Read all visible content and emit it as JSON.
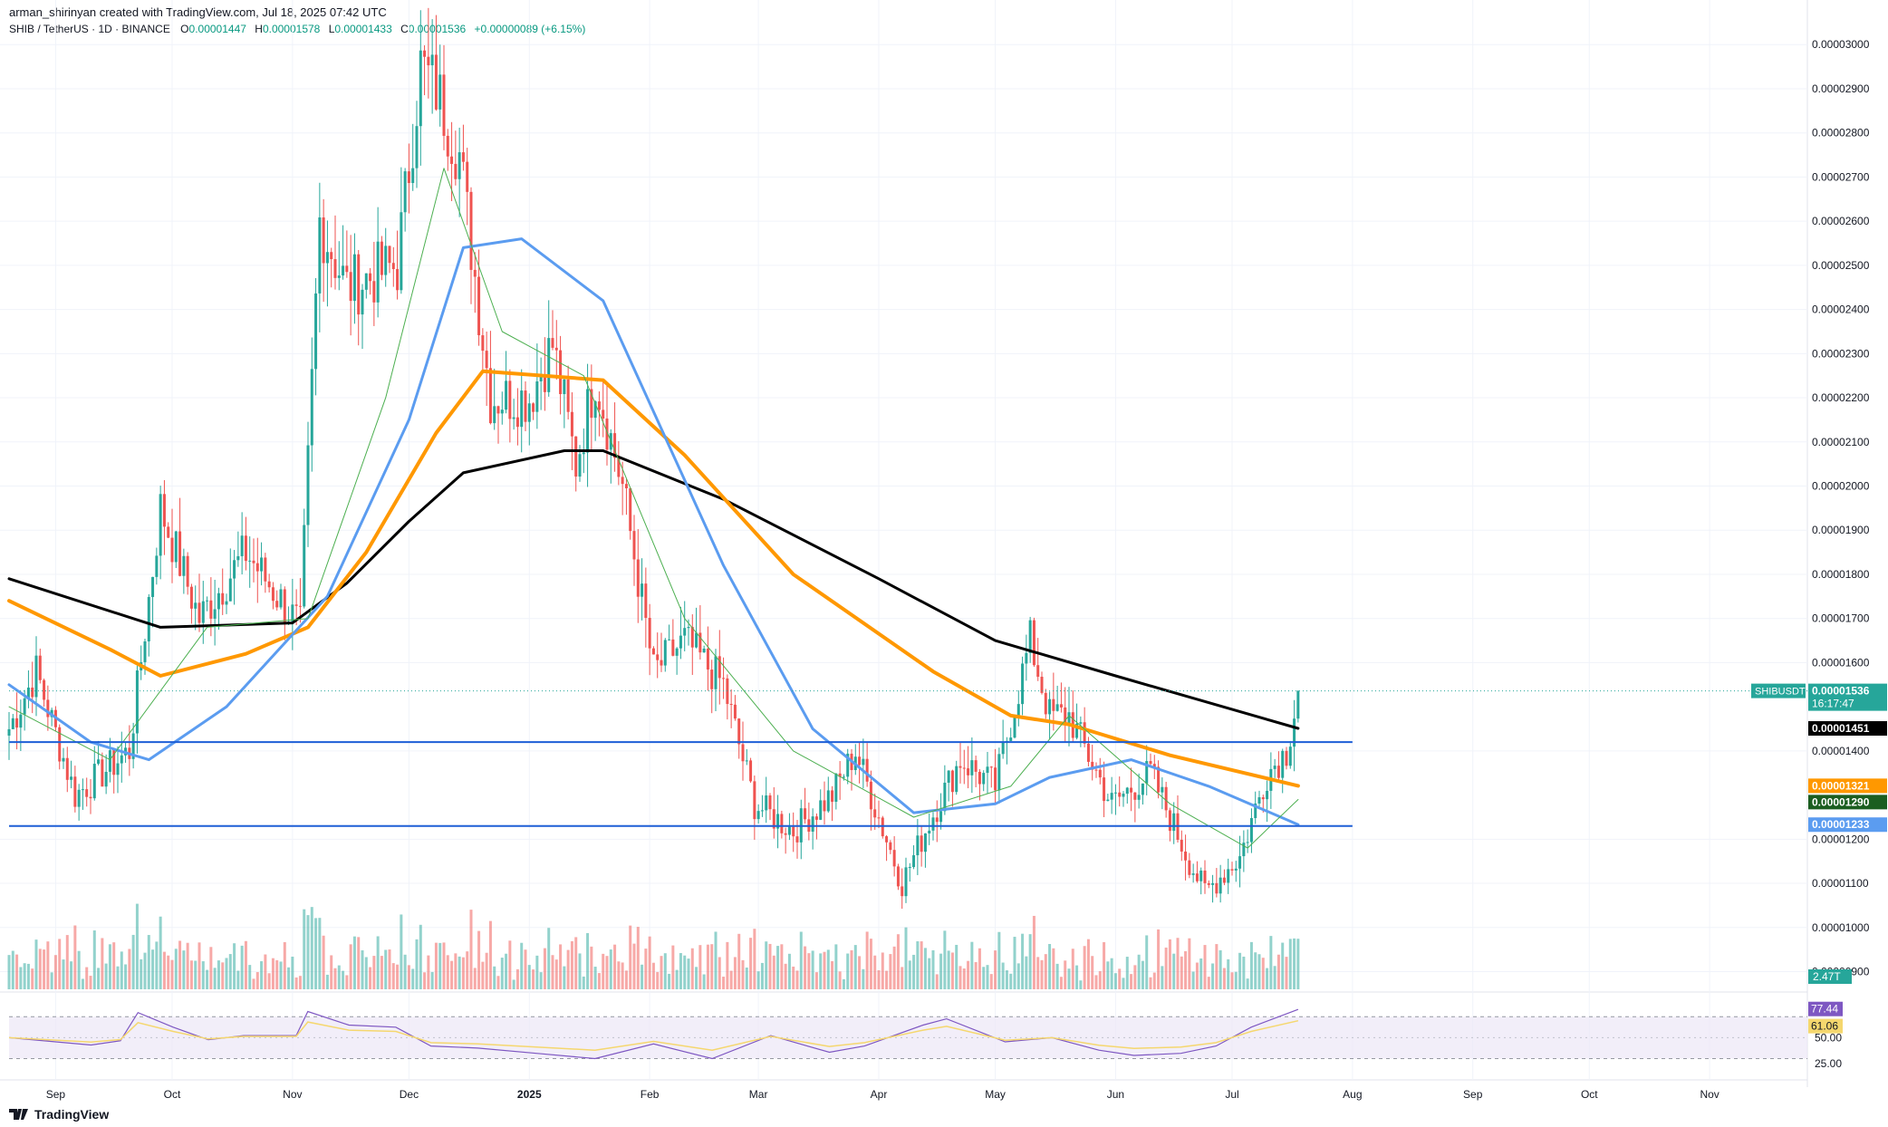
{
  "header": {
    "published_line": "arman_shirinyan created with TradingView.com, Jul 18, 2025 07:42 UTC",
    "symbol_line": "SHIB / TetherUS · 1D · BINANCE",
    "o_label": "O",
    "o_value": "0.00001447",
    "h_label": "H",
    "h_value": "0.00001578",
    "l_label": "L",
    "l_value": "0.00001433",
    "c_label": "C",
    "c_value": "0.00001536",
    "change": "+0.00000089 (+6.15%)"
  },
  "footer": {
    "brand": "TradingView"
  },
  "colors": {
    "up": "#26a69a",
    "down": "#ef5350",
    "ma_black": "#000000",
    "ma_orange": "#ff9800",
    "ma_blue": "#5b9cf0",
    "ma_green": "#4caf50",
    "hline": "#1e5fd6",
    "rsi": "#7e57c2",
    "rsi_ma": "#f5d76e"
  },
  "chart_data": [
    {
      "type": "candlestick",
      "title": "SHIB / TetherUS · 1D · BINANCE",
      "x_axis_labels": [
        "Sep",
        "Oct",
        "Nov",
        "Dec",
        "2025",
        "Feb",
        "Mar",
        "Apr",
        "May",
        "Jun",
        "Jul",
        "Aug",
        "Sep",
        "Oct",
        "Nov"
      ],
      "x_range": [
        "2024-08-20",
        "2025-11-25"
      ],
      "y_ticks": [
        "0.00000900",
        "0.00001000",
        "0.00001100",
        "0.00001200",
        "0.00001400",
        "0.00001600",
        "0.00001700",
        "0.00001800",
        "0.00001900",
        "0.00002000",
        "0.00002100",
        "0.00002200",
        "0.00002300",
        "0.00002400",
        "0.00002500",
        "0.00002600",
        "0.00002700",
        "0.00002800",
        "0.00002900",
        "0.00003000"
      ],
      "ylim": [
        8.6e-06,
        3.06e-05
      ],
      "key_points": [
        {
          "date": "2024-08-20",
          "close": 1.45e-05
        },
        {
          "date": "2024-08-27",
          "close": 1.58e-05
        },
        {
          "date": "2024-09-06",
          "close": 1.3e-05
        },
        {
          "date": "2024-09-20",
          "close": 1.4e-05
        },
        {
          "date": "2024-09-28",
          "close": 1.95e-05
        },
        {
          "date": "2024-10-08",
          "close": 1.7e-05
        },
        {
          "date": "2024-10-20",
          "close": 1.85e-05
        },
        {
          "date": "2024-11-03",
          "close": 1.68e-05
        },
        {
          "date": "2024-11-08",
          "close": 2.6e-05
        },
        {
          "date": "2024-11-15",
          "close": 2.45e-05
        },
        {
          "date": "2024-11-28",
          "close": 2.5e-05
        },
        {
          "date": "2024-12-04",
          "close": 2.95e-05
        },
        {
          "date": "2024-12-08",
          "close": 2.9e-05
        },
        {
          "date": "2024-12-14",
          "close": 2.75e-05
        },
        {
          "date": "2024-12-22",
          "close": 2.2e-05
        },
        {
          "date": "2025-01-01",
          "close": 2.2e-05
        },
        {
          "date": "2025-01-07",
          "close": 2.32e-05
        },
        {
          "date": "2025-01-13",
          "close": 2.05e-05
        },
        {
          "date": "2025-01-18",
          "close": 2.25e-05
        },
        {
          "date": "2025-01-25",
          "close": 2e-05
        },
        {
          "date": "2025-02-02",
          "close": 1.58e-05
        },
        {
          "date": "2025-02-10",
          "close": 1.65e-05
        },
        {
          "date": "2025-02-20",
          "close": 1.55e-05
        },
        {
          "date": "2025-02-28",
          "close": 1.28e-05
        },
        {
          "date": "2025-03-10",
          "close": 1.22e-05
        },
        {
          "date": "2025-03-20",
          "close": 1.3e-05
        },
        {
          "date": "2025-03-26",
          "close": 1.4e-05
        },
        {
          "date": "2025-04-07",
          "close": 1.1e-05
        },
        {
          "date": "2025-04-14",
          "close": 1.24e-05
        },
        {
          "date": "2025-04-22",
          "close": 1.38e-05
        },
        {
          "date": "2025-05-01",
          "close": 1.32e-05
        },
        {
          "date": "2025-05-10",
          "close": 1.65e-05
        },
        {
          "date": "2025-05-15",
          "close": 1.48e-05
        },
        {
          "date": "2025-05-20",
          "close": 1.48e-05
        },
        {
          "date": "2025-05-31",
          "close": 1.28e-05
        },
        {
          "date": "2025-06-10",
          "close": 1.35e-05
        },
        {
          "date": "2025-06-20",
          "close": 1.15e-05
        },
        {
          "date": "2025-06-24",
          "close": 1.08e-05
        },
        {
          "date": "2025-07-03",
          "close": 1.16e-05
        },
        {
          "date": "2025-07-10",
          "close": 1.35e-05
        },
        {
          "date": "2025-07-15",
          "close": 1.4e-05
        },
        {
          "date": "2025-07-18",
          "close": 1.536e-05
        }
      ],
      "moving_averages": [
        {
          "color": "black",
          "points": [
            [
              "2024-08-20",
              1.79e-05
            ],
            [
              "2024-09-28",
              1.68e-05
            ],
            [
              "2024-11-01",
              1.69e-05
            ],
            [
              "2024-11-15",
              1.78e-05
            ],
            [
              "2024-12-01",
              1.92e-05
            ],
            [
              "2024-12-15",
              2.03e-05
            ],
            [
              "2025-01-10",
              2.08e-05
            ],
            [
              "2025-01-20",
              2.08e-05
            ],
            [
              "2025-02-20",
              1.97e-05
            ],
            [
              "2025-04-01",
              1.79e-05
            ],
            [
              "2025-05-01",
              1.65e-05
            ],
            [
              "2025-06-01",
              1.57e-05
            ],
            [
              "2025-07-18",
              1.451e-05
            ]
          ]
        },
        {
          "color": "orange",
          "points": [
            [
              "2024-08-20",
              1.74e-05
            ],
            [
              "2024-09-15",
              1.63e-05
            ],
            [
              "2024-09-28",
              1.57e-05
            ],
            [
              "2024-10-20",
              1.62e-05
            ],
            [
              "2024-11-05",
              1.68e-05
            ],
            [
              "2024-11-20",
              1.85e-05
            ],
            [
              "2024-12-08",
              2.12e-05
            ],
            [
              "2024-12-20",
              2.26e-05
            ],
            [
              "2025-01-20",
              2.24e-05
            ],
            [
              "2025-02-10",
              2.07e-05
            ],
            [
              "2025-03-10",
              1.8e-05
            ],
            [
              "2025-04-15",
              1.58e-05
            ],
            [
              "2025-05-05",
              1.48e-05
            ],
            [
              "2025-05-20",
              1.46e-05
            ],
            [
              "2025-06-15",
              1.39e-05
            ],
            [
              "2025-07-18",
              1.321e-05
            ]
          ]
        },
        {
          "color": "blue",
          "points": [
            [
              "2024-08-20",
              1.55e-05
            ],
            [
              "2024-09-10",
              1.42e-05
            ],
            [
              "2024-09-25",
              1.38e-05
            ],
            [
              "2024-10-15",
              1.5e-05
            ],
            [
              "2024-11-10",
              1.75e-05
            ],
            [
              "2024-12-01",
              2.15e-05
            ],
            [
              "2024-12-15",
              2.54e-05
            ],
            [
              "2024-12-30",
              2.56e-05
            ],
            [
              "2025-01-20",
              2.42e-05
            ],
            [
              "2025-02-20",
              1.82e-05
            ],
            [
              "2025-03-15",
              1.45e-05
            ],
            [
              "2025-04-10",
              1.26e-05
            ],
            [
              "2025-05-01",
              1.28e-05
            ],
            [
              "2025-05-15",
              1.34e-05
            ],
            [
              "2025-06-05",
              1.38e-05
            ],
            [
              "2025-06-25",
              1.32e-05
            ],
            [
              "2025-07-18",
              1.233e-05
            ]
          ]
        },
        {
          "color": "green",
          "points": [
            [
              "2024-08-20",
              1.5e-05
            ],
            [
              "2024-09-15",
              1.38e-05
            ],
            [
              "2024-10-10",
              1.68e-05
            ],
            [
              "2024-11-05",
              1.7e-05
            ],
            [
              "2024-11-25",
              2.2e-05
            ],
            [
              "2024-12-10",
              2.72e-05
            ],
            [
              "2024-12-25",
              2.35e-05
            ],
            [
              "2025-01-15",
              2.25e-05
            ],
            [
              "2025-02-10",
              1.7e-05
            ],
            [
              "2025-03-10",
              1.4e-05
            ],
            [
              "2025-04-10",
              1.25e-05
            ],
            [
              "2025-05-05",
              1.32e-05
            ],
            [
              "2025-05-20",
              1.48e-05
            ],
            [
              "2025-06-15",
              1.28e-05
            ],
            [
              "2025-07-05",
              1.18e-05
            ],
            [
              "2025-07-18",
              1.29e-05
            ]
          ]
        }
      ],
      "horizontal_lines": [
        1.42e-05,
        1.23e-05
      ],
      "price_labels": [
        {
          "symbol": "SHIBUSDT",
          "value": "0.00001536",
          "countdown": "16:17:47"
        },
        {
          "value": "0.00001451"
        },
        {
          "value": "0.00001321"
        },
        {
          "value": "0.00001290"
        },
        {
          "value": "0.00001233"
        }
      ]
    },
    {
      "type": "bar",
      "title": "Volume",
      "label": "2.47T"
    },
    {
      "type": "line",
      "title": "RSI",
      "y_ticks": [
        "25.00",
        "50.00"
      ],
      "bands": [
        70,
        30
      ],
      "labels": [
        "77.44",
        "61.06"
      ],
      "points": [
        [
          0,
          50
        ],
        [
          0.07,
          43
        ],
        [
          0.095,
          47
        ],
        [
          0.11,
          74
        ],
        [
          0.14,
          60
        ],
        [
          0.17,
          48
        ],
        [
          0.2,
          52
        ],
        [
          0.245,
          52
        ],
        [
          0.255,
          75
        ],
        [
          0.29,
          62
        ],
        [
          0.33,
          60
        ],
        [
          0.36,
          42
        ],
        [
          0.4,
          40
        ],
        [
          0.45,
          35
        ],
        [
          0.5,
          30
        ],
        [
          0.55,
          44
        ],
        [
          0.6,
          30
        ],
        [
          0.65,
          52
        ],
        [
          0.7,
          36
        ],
        [
          0.73,
          42
        ],
        [
          0.78,
          62
        ],
        [
          0.8,
          68
        ],
        [
          0.85,
          46
        ],
        [
          0.89,
          50
        ],
        [
          0.93,
          38
        ],
        [
          0.96,
          33
        ],
        [
          1.0,
          35
        ],
        [
          1.03,
          42
        ],
        [
          1.06,
          60
        ],
        [
          1.1,
          77
        ]
      ]
    }
  ]
}
